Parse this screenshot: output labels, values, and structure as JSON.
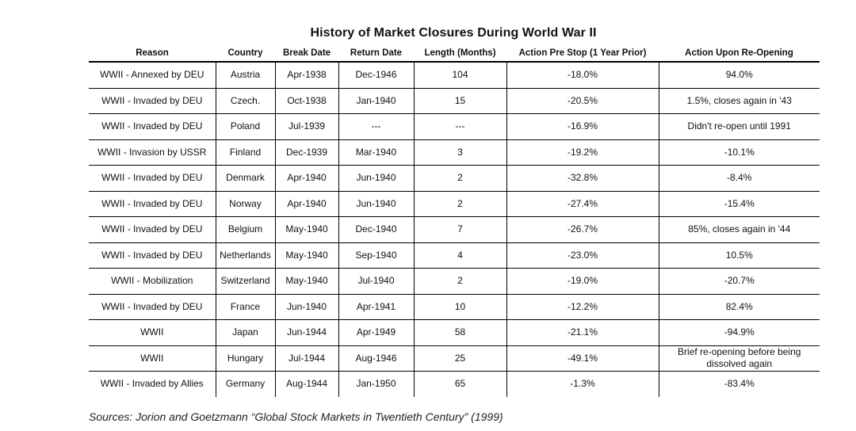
{
  "title": "History of Market Closures During World War II",
  "columns": [
    "Reason",
    "Country",
    "Break Date",
    "Return Date",
    "Length (Months)",
    "Action Pre Stop (1 Year Prior)",
    "Action Upon Re-Opening"
  ],
  "rows": [
    [
      "WWII - Annexed by DEU",
      "Austria",
      "Apr-1938",
      "Dec-1946",
      "104",
      "-18.0%",
      "94.0%"
    ],
    [
      "WWII - Invaded by DEU",
      "Czech.",
      "Oct-1938",
      "Jan-1940",
      "15",
      "-20.5%",
      "1.5%, closes again in '43"
    ],
    [
      "WWII - Invaded by DEU",
      "Poland",
      "Jul-1939",
      "---",
      "---",
      "-16.9%",
      "Didn't re-open until 1991"
    ],
    [
      "WWII - Invasion by USSR",
      "Finland",
      "Dec-1939",
      "Mar-1940",
      "3",
      "-19.2%",
      "-10.1%"
    ],
    [
      "WWII - Invaded by DEU",
      "Denmark",
      "Apr-1940",
      "Jun-1940",
      "2",
      "-32.8%",
      "-8.4%"
    ],
    [
      "WWII - Invaded by DEU",
      "Norway",
      "Apr-1940",
      "Jun-1940",
      "2",
      "-27.4%",
      "-15.4%"
    ],
    [
      "WWII - Invaded by DEU",
      "Belgium",
      "May-1940",
      "Dec-1940",
      "7",
      "-26.7%",
      "85%, closes again in '44"
    ],
    [
      "WWII - Invaded by DEU",
      "Netherlands",
      "May-1940",
      "Sep-1940",
      "4",
      "-23.0%",
      "10.5%"
    ],
    [
      "WWII - Mobilization",
      "Switzerland",
      "May-1940",
      "Jul-1940",
      "2",
      "-19.0%",
      "-20.7%"
    ],
    [
      "WWII - Invaded by DEU",
      "France",
      "Jun-1940",
      "Apr-1941",
      "10",
      "-12.2%",
      "82.4%"
    ],
    [
      "WWII",
      "Japan",
      "Jun-1944",
      "Apr-1949",
      "58",
      "-21.1%",
      "-94.9%"
    ],
    [
      "WWII",
      "Hungary",
      "Jul-1944",
      "Aug-1946",
      "25",
      "-49.1%",
      "Brief re-opening before being dissolved again"
    ],
    [
      "WWII - Invaded by Allies",
      "Germany",
      "Aug-1944",
      "Jan-1950",
      "65",
      "-1.3%",
      "-83.4%"
    ]
  ],
  "sources": "Sources: Jorion and Goetzmann “Global Stock Markets in Twentieth Century” (1999)"
}
